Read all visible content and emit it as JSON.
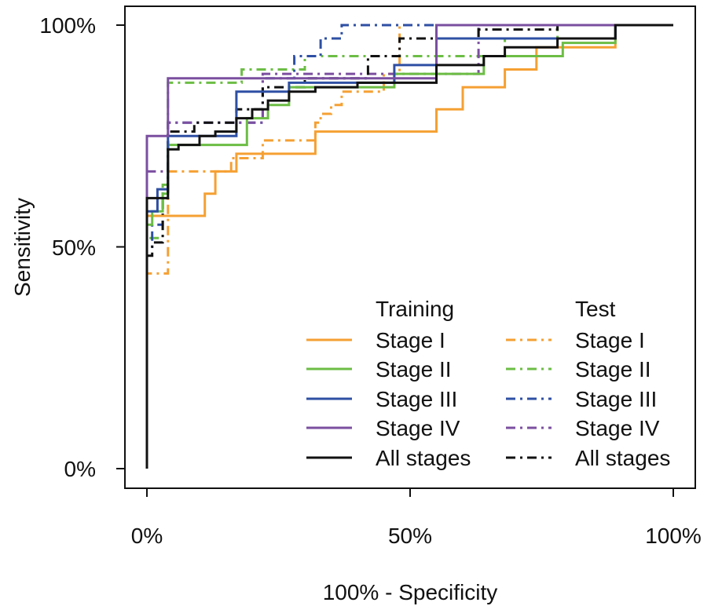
{
  "chart_data": {
    "type": "line",
    "xlabel": "100% - Specificity",
    "ylabel": "Sensitivity",
    "xlim": [
      0,
      100
    ],
    "ylim": [
      0,
      100
    ],
    "x_ticks": [
      "0%",
      "50%",
      "100%"
    ],
    "y_ticks": [
      "0%",
      "50%",
      "100%"
    ],
    "grid": false,
    "legend_position": "bottom-right",
    "legend": {
      "training_title": "Training",
      "test_title": "Test",
      "entries": [
        "Stage I",
        "Stage II",
        "Stage III",
        "Stage IV",
        "All stages"
      ]
    },
    "colors": {
      "stage_i": "#F5A033",
      "stage_ii": "#6CBD45",
      "stage_iii": "#2E4FA3",
      "stage_iv": "#7B4FA0",
      "all": "#111111"
    },
    "series": [
      {
        "name": "Stage I",
        "group": "Training",
        "color": "#F5A033",
        "x": [
          0,
          0,
          4,
          4,
          11,
          11,
          13,
          13,
          17,
          17,
          32,
          32,
          55,
          55,
          60,
          60,
          68,
          68,
          74,
          74,
          78,
          78,
          89,
          89,
          100
        ],
        "y": [
          0,
          57,
          57,
          57,
          57,
          62,
          62,
          67,
          67,
          71,
          71,
          76,
          76,
          81,
          81,
          86,
          86,
          90,
          90,
          95,
          95,
          95,
          95,
          100,
          100
        ]
      },
      {
        "name": "Stage I",
        "group": "Test",
        "color": "#F5A033",
        "x": [
          0,
          0,
          1,
          1,
          4,
          4,
          16,
          16,
          22,
          22,
          32,
          32,
          33,
          33,
          35,
          35,
          37,
          37,
          45,
          45,
          48,
          48,
          100
        ],
        "y": [
          0,
          44,
          44,
          44,
          44,
          67,
          67,
          70,
          70,
          74,
          74,
          78,
          78,
          80,
          80,
          82,
          82,
          85,
          85,
          89,
          89,
          100,
          100
        ]
      },
      {
        "name": "Stage II",
        "group": "Training",
        "color": "#6CBD45",
        "x": [
          0,
          0,
          1,
          1,
          3,
          3,
          4,
          4,
          10,
          10,
          19,
          19,
          23,
          23,
          27,
          27,
          47,
          47,
          57,
          57,
          64,
          64,
          79,
          79,
          89,
          89,
          100
        ],
        "y": [
          0,
          55,
          55,
          58,
          58,
          62,
          62,
          73,
          73,
          73,
          73,
          79,
          79,
          82,
          82,
          86,
          86,
          89,
          89,
          89,
          89,
          93,
          93,
          96,
          96,
          100,
          100
        ]
      },
      {
        "name": "Stage II",
        "group": "Test",
        "color": "#6CBD45",
        "x": [
          0,
          0,
          1,
          1,
          3,
          3,
          4,
          4,
          15,
          15,
          18,
          18,
          25,
          25,
          30,
          30,
          45,
          45,
          68,
          68,
          78,
          78,
          100
        ],
        "y": [
          0,
          52,
          52,
          52,
          52,
          64,
          64,
          87,
          87,
          87,
          87,
          90,
          90,
          90,
          90,
          93,
          93,
          93,
          93,
          97,
          97,
          100,
          100
        ]
      },
      {
        "name": "Stage III",
        "group": "Training",
        "color": "#2E4FA3",
        "x": [
          0,
          0,
          2,
          2,
          4,
          4,
          10,
          10,
          17,
          17,
          22,
          22,
          27,
          27,
          47,
          47,
          55,
          55,
          89,
          89,
          100
        ],
        "y": [
          0,
          58,
          58,
          63,
          63,
          75,
          75,
          75,
          75,
          85,
          85,
          85,
          85,
          87,
          87,
          91,
          91,
          97,
          97,
          100,
          100
        ]
      },
      {
        "name": "Stage III",
        "group": "Test",
        "color": "#2E4FA3",
        "x": [
          0,
          0,
          1,
          1,
          3,
          3,
          4,
          4,
          12,
          12,
          22,
          22,
          28,
          28,
          33,
          33,
          37,
          37,
          100
        ],
        "y": [
          0,
          50,
          50,
          55,
          55,
          62,
          62,
          78,
          78,
          78,
          78,
          88,
          88,
          93,
          93,
          97,
          97,
          100,
          100
        ]
      },
      {
        "name": "Stage IV",
        "group": "Training",
        "color": "#7B4FA0",
        "x": [
          0,
          0,
          4,
          4,
          55,
          55,
          100
        ],
        "y": [
          0,
          75,
          75,
          88,
          88,
          100,
          100
        ]
      },
      {
        "name": "Stage IV",
        "group": "Test",
        "color": "#7B4FA0",
        "x": [
          0,
          0,
          4,
          4,
          22,
          22,
          63,
          63,
          100
        ],
        "y": [
          0,
          67,
          67,
          78,
          78,
          89,
          89,
          100,
          100
        ]
      },
      {
        "name": "All stages",
        "group": "Training",
        "color": "#111111",
        "x": [
          0,
          0,
          4,
          4,
          6,
          6,
          10,
          10,
          13,
          13,
          17,
          17,
          20,
          20,
          23,
          23,
          27,
          27,
          32,
          32,
          40,
          40,
          55,
          55,
          64,
          64,
          68,
          68,
          78,
          78,
          89,
          89,
          100
        ],
        "y": [
          0,
          61,
          61,
          72,
          72,
          73,
          73,
          75,
          75,
          76,
          76,
          79,
          79,
          81,
          81,
          83,
          83,
          85,
          85,
          86,
          86,
          87,
          87,
          91,
          91,
          93,
          93,
          95,
          95,
          97,
          97,
          100,
          100
        ]
      },
      {
        "name": "All stages",
        "group": "Test",
        "color": "#111111",
        "x": [
          0,
          0,
          1,
          1,
          3,
          3,
          4,
          4,
          9,
          9,
          17,
          17,
          22,
          22,
          30,
          30,
          42,
          42,
          48,
          48,
          63,
          63,
          78,
          78,
          100
        ],
        "y": [
          0,
          48,
          48,
          51,
          51,
          61,
          61,
          76,
          76,
          78,
          78,
          81,
          81,
          86,
          86,
          88,
          88,
          93,
          93,
          97,
          97,
          99,
          99,
          100,
          100
        ]
      }
    ]
  }
}
